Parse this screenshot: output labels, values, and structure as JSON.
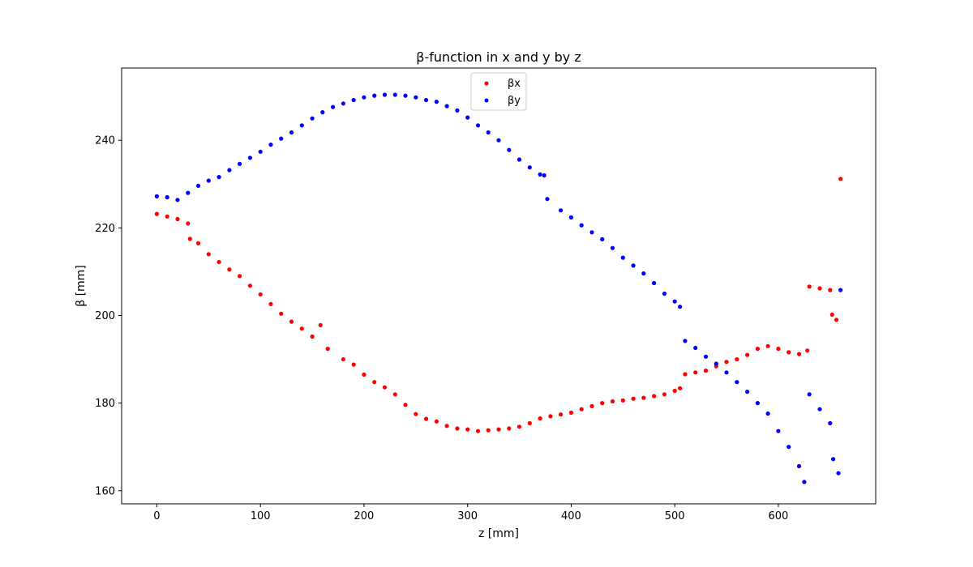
{
  "chart_data": {
    "type": "scatter",
    "title": "β-function in x and y by z",
    "xlabel": "z [mm]",
    "ylabel": "β [mm]",
    "xlim": [
      -34,
      694
    ],
    "ylim": [
      157,
      256.5
    ],
    "xticks": [
      0,
      100,
      200,
      300,
      400,
      500,
      600
    ],
    "yticks": [
      160,
      180,
      200,
      220,
      240
    ],
    "grid": false,
    "legend_position": "top-center",
    "series": [
      {
        "name": "βx",
        "color": "#ff0000",
        "points": [
          [
            0,
            223.2
          ],
          [
            10,
            222.6
          ],
          [
            20,
            222.0
          ],
          [
            30,
            221.0
          ],
          [
            32,
            217.5
          ],
          [
            40,
            216.5
          ],
          [
            50,
            214.0
          ],
          [
            60,
            212.2
          ],
          [
            70,
            210.5
          ],
          [
            80,
            209.0
          ],
          [
            90,
            206.8
          ],
          [
            100,
            204.8
          ],
          [
            110,
            202.6
          ],
          [
            120,
            200.4
          ],
          [
            130,
            198.6
          ],
          [
            140,
            197.0
          ],
          [
            150,
            195.2
          ],
          [
            158,
            197.8
          ],
          [
            165,
            192.4
          ],
          [
            180,
            190.0
          ],
          [
            190,
            188.8
          ],
          [
            200,
            186.5
          ],
          [
            210,
            184.8
          ],
          [
            220,
            183.6
          ],
          [
            230,
            182.0
          ],
          [
            240,
            179.6
          ],
          [
            250,
            177.5
          ],
          [
            260,
            176.4
          ],
          [
            270,
            175.8
          ],
          [
            280,
            174.8
          ],
          [
            290,
            174.2
          ],
          [
            300,
            174.0
          ],
          [
            310,
            173.6
          ],
          [
            320,
            173.8
          ],
          [
            330,
            174.0
          ],
          [
            340,
            174.2
          ],
          [
            350,
            174.6
          ],
          [
            360,
            175.4
          ],
          [
            370,
            176.5
          ],
          [
            380,
            177.0
          ],
          [
            390,
            177.4
          ],
          [
            400,
            177.8
          ],
          [
            410,
            178.6
          ],
          [
            420,
            179.3
          ],
          [
            430,
            180.0
          ],
          [
            440,
            180.4
          ],
          [
            450,
            180.6
          ],
          [
            460,
            181.0
          ],
          [
            470,
            181.2
          ],
          [
            480,
            181.6
          ],
          [
            490,
            182.0
          ],
          [
            500,
            182.8
          ],
          [
            505,
            183.4
          ],
          [
            510,
            186.6
          ],
          [
            520,
            187.0
          ],
          [
            530,
            187.4
          ],
          [
            540,
            188.4
          ],
          [
            550,
            189.4
          ],
          [
            560,
            190.0
          ],
          [
            570,
            191.0
          ],
          [
            580,
            192.4
          ],
          [
            590,
            193.0
          ],
          [
            600,
            192.4
          ],
          [
            610,
            191.6
          ],
          [
            620,
            191.2
          ],
          [
            628,
            192.0
          ],
          [
            630,
            206.6
          ],
          [
            640,
            206.2
          ],
          [
            650,
            205.8
          ],
          [
            652,
            200.2
          ],
          [
            656,
            199.0
          ],
          [
            660,
            231.2
          ]
        ]
      },
      {
        "name": "βy",
        "color": "#0000ff",
        "points": [
          [
            0,
            227.2
          ],
          [
            10,
            227.0
          ],
          [
            20,
            226.4
          ],
          [
            30,
            228.0
          ],
          [
            40,
            229.6
          ],
          [
            50,
            230.8
          ],
          [
            60,
            231.6
          ],
          [
            70,
            233.2
          ],
          [
            80,
            234.6
          ],
          [
            90,
            236.0
          ],
          [
            100,
            237.4
          ],
          [
            110,
            239.0
          ],
          [
            120,
            240.4
          ],
          [
            130,
            241.8
          ],
          [
            140,
            243.4
          ],
          [
            150,
            245.0
          ],
          [
            160,
            246.4
          ],
          [
            170,
            247.6
          ],
          [
            180,
            248.4
          ],
          [
            190,
            249.2
          ],
          [
            200,
            249.8
          ],
          [
            210,
            250.2
          ],
          [
            220,
            250.4
          ],
          [
            230,
            250.4
          ],
          [
            240,
            250.2
          ],
          [
            250,
            249.8
          ],
          [
            260,
            249.2
          ],
          [
            270,
            248.8
          ],
          [
            280,
            247.8
          ],
          [
            290,
            246.8
          ],
          [
            300,
            245.2
          ],
          [
            310,
            243.4
          ],
          [
            320,
            241.8
          ],
          [
            330,
            240.0
          ],
          [
            340,
            237.8
          ],
          [
            350,
            235.6
          ],
          [
            360,
            233.8
          ],
          [
            370,
            232.2
          ],
          [
            374,
            232.0
          ],
          [
            377,
            226.6
          ],
          [
            390,
            224.0
          ],
          [
            400,
            222.4
          ],
          [
            410,
            220.6
          ],
          [
            420,
            219.0
          ],
          [
            430,
            217.4
          ],
          [
            440,
            215.4
          ],
          [
            450,
            213.2
          ],
          [
            460,
            211.4
          ],
          [
            470,
            209.6
          ],
          [
            480,
            207.4
          ],
          [
            490,
            205.0
          ],
          [
            500,
            203.2
          ],
          [
            505,
            202.0
          ],
          [
            510,
            194.2
          ],
          [
            520,
            192.6
          ],
          [
            530,
            190.6
          ],
          [
            540,
            189.0
          ],
          [
            550,
            187.0
          ],
          [
            560,
            184.8
          ],
          [
            570,
            182.6
          ],
          [
            580,
            180.0
          ],
          [
            590,
            177.6
          ],
          [
            600,
            173.6
          ],
          [
            610,
            170.0
          ],
          [
            620,
            165.6
          ],
          [
            625,
            162.0
          ],
          [
            630,
            182.0
          ],
          [
            640,
            178.6
          ],
          [
            650,
            175.4
          ],
          [
            653,
            167.2
          ],
          [
            658,
            164.0
          ],
          [
            660,
            205.8
          ]
        ]
      }
    ]
  }
}
